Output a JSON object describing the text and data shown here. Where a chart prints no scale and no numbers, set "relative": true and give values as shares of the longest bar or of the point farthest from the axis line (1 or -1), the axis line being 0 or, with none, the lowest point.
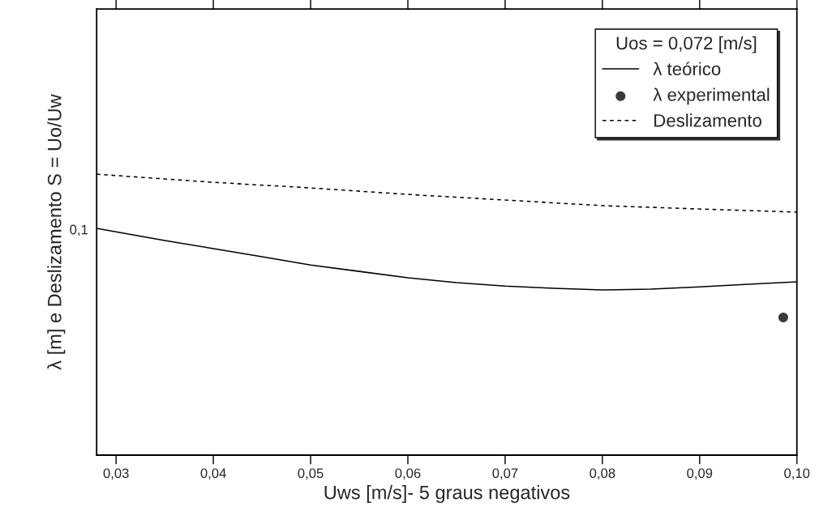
{
  "chart_data": {
    "type": "line",
    "xlabel": "Uws [m/s]- 5 graus negativos",
    "ylabel": "λ [m] e Deslizamento S = Uo/Uw",
    "legend_title": "Uos = 0,072 [m/s]",
    "legend": "top right",
    "relative": true,
    "annotations": [
      "0,1"
    ],
    "xlim": [
      0.028,
      0.1
    ],
    "xticks": [
      {
        "value": 0.03,
        "label": "0,03"
      },
      {
        "value": 0.04,
        "label": "0,04"
      },
      {
        "value": 0.05,
        "label": "0,05"
      },
      {
        "value": 0.06,
        "label": "0,06"
      },
      {
        "value": 0.07,
        "label": "0,07"
      },
      {
        "value": 0.08,
        "label": "0,08"
      },
      {
        "value": 0.09,
        "label": "0,09"
      },
      {
        "value": 0.1,
        "label": "0,10"
      }
    ],
    "series": [
      {
        "name": "λ teórico",
        "line_style": "solid",
        "color": "#000000",
        "x": [
          0.028,
          0.035,
          0.04,
          0.045,
          0.05,
          0.055,
          0.06,
          0.065,
          0.07,
          0.075,
          0.08,
          0.085,
          0.09,
          0.095,
          0.1
        ],
        "values": [
          0.807,
          0.764,
          0.735,
          0.706,
          0.677,
          0.654,
          0.631,
          0.614,
          0.602,
          0.594,
          0.588,
          0.591,
          0.599,
          0.608,
          0.617
        ]
      },
      {
        "name": "λ experimental",
        "type": "scatter",
        "marker": "circle",
        "color": "#3a3a3a",
        "x": [
          0.0986
        ],
        "values": [
          0.49
        ]
      },
      {
        "name": "Deslizamento",
        "line_style": "dashed",
        "color": "#000000",
        "x": [
          0.028,
          0.035,
          0.04,
          0.05,
          0.06,
          0.07,
          0.08,
          0.09,
          0.1
        ],
        "values": [
          1,
          0.983,
          0.971,
          0.951,
          0.928,
          0.908,
          0.888,
          0.876,
          0.865
        ]
      }
    ]
  }
}
